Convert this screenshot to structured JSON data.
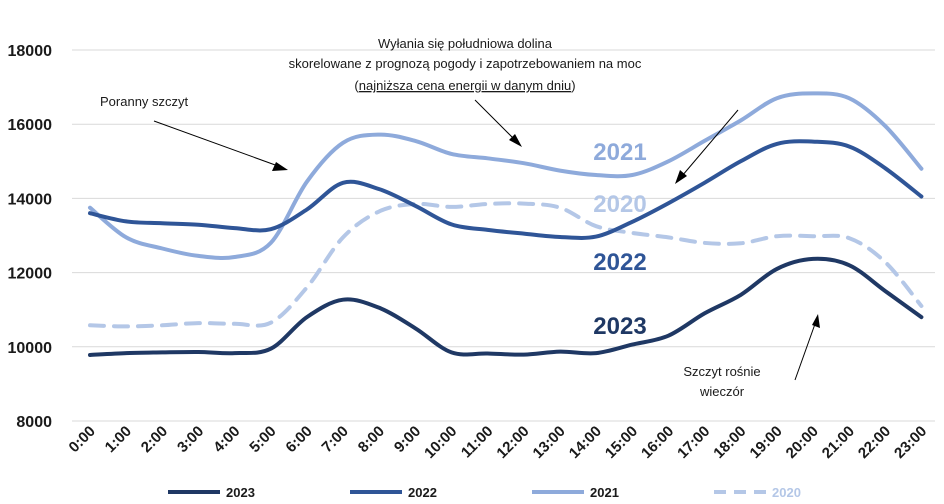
{
  "chart_data": {
    "type": "line",
    "title": "",
    "xlabel": "",
    "ylabel": "",
    "ylim": [
      8000,
      18000
    ],
    "yticks": [
      8000,
      10000,
      12000,
      14000,
      16000,
      18000
    ],
    "grid": true,
    "legend_position": "bottom",
    "categories": [
      "0:00",
      "1:00",
      "2:00",
      "3:00",
      "4:00",
      "5:00",
      "6:00",
      "7:00",
      "8:00",
      "9:00",
      "10:00",
      "11:00",
      "12:00",
      "13:00",
      "14:00",
      "15:00",
      "16:00",
      "17:00",
      "18:00",
      "19:00",
      "20:00",
      "21:00",
      "22:00",
      "23:00"
    ],
    "series": [
      {
        "name": "2023",
        "color": "#1f3864",
        "dashed": false,
        "values": [
          9780,
          9830,
          9850,
          9860,
          9830,
          9950,
          10800,
          11270,
          11050,
          10500,
          9850,
          9820,
          9790,
          9870,
          9830,
          10060,
          10300,
          10900,
          11400,
          12100,
          12370,
          12200,
          11500,
          10800
        ]
      },
      {
        "name": "2022",
        "color": "#2f5597",
        "dashed": false,
        "values": [
          13600,
          13380,
          13330,
          13290,
          13200,
          13170,
          13700,
          14420,
          14250,
          13800,
          13300,
          13150,
          13050,
          12960,
          12970,
          13370,
          13870,
          14420,
          15000,
          15470,
          15530,
          15400,
          14810,
          14050
        ]
      },
      {
        "name": "2021",
        "color": "#8eaadb",
        "dashed": false,
        "values": [
          13750,
          12950,
          12650,
          12450,
          12420,
          12800,
          14450,
          15500,
          15720,
          15550,
          15200,
          15080,
          14950,
          14750,
          14630,
          14630,
          15000,
          15550,
          16100,
          16700,
          16830,
          16700,
          15950,
          14800
        ]
      },
      {
        "name": "2020",
        "color": "#b4c7e7",
        "dashed": true,
        "values": [
          10580,
          10550,
          10580,
          10640,
          10620,
          10650,
          11600,
          12950,
          13650,
          13850,
          13770,
          13850,
          13860,
          13750,
          13250,
          13070,
          12950,
          12800,
          12790,
          12980,
          12980,
          12930,
          12280,
          11100
        ]
      }
    ],
    "series_labels": [
      {
        "text": "2021",
        "series": "2021"
      },
      {
        "text": "2020",
        "series": "2020"
      },
      {
        "text": "2022",
        "series": "2022"
      },
      {
        "text": "2023",
        "series": "2023"
      }
    ],
    "annotations": {
      "morning": "Poranny szczyt",
      "valley_line1": "Wyłania się południowa dolina",
      "valley_line2": "skorelowane z prognozą pogody i zapotrzebowaniem na moc",
      "valley_line3_open": "(",
      "valley_line3_under": "najniższa cena energii w danym dniu",
      "valley_line3_close": ")",
      "evening_line1": "Szczyt rośnie",
      "evening_line2": "wieczór"
    }
  }
}
